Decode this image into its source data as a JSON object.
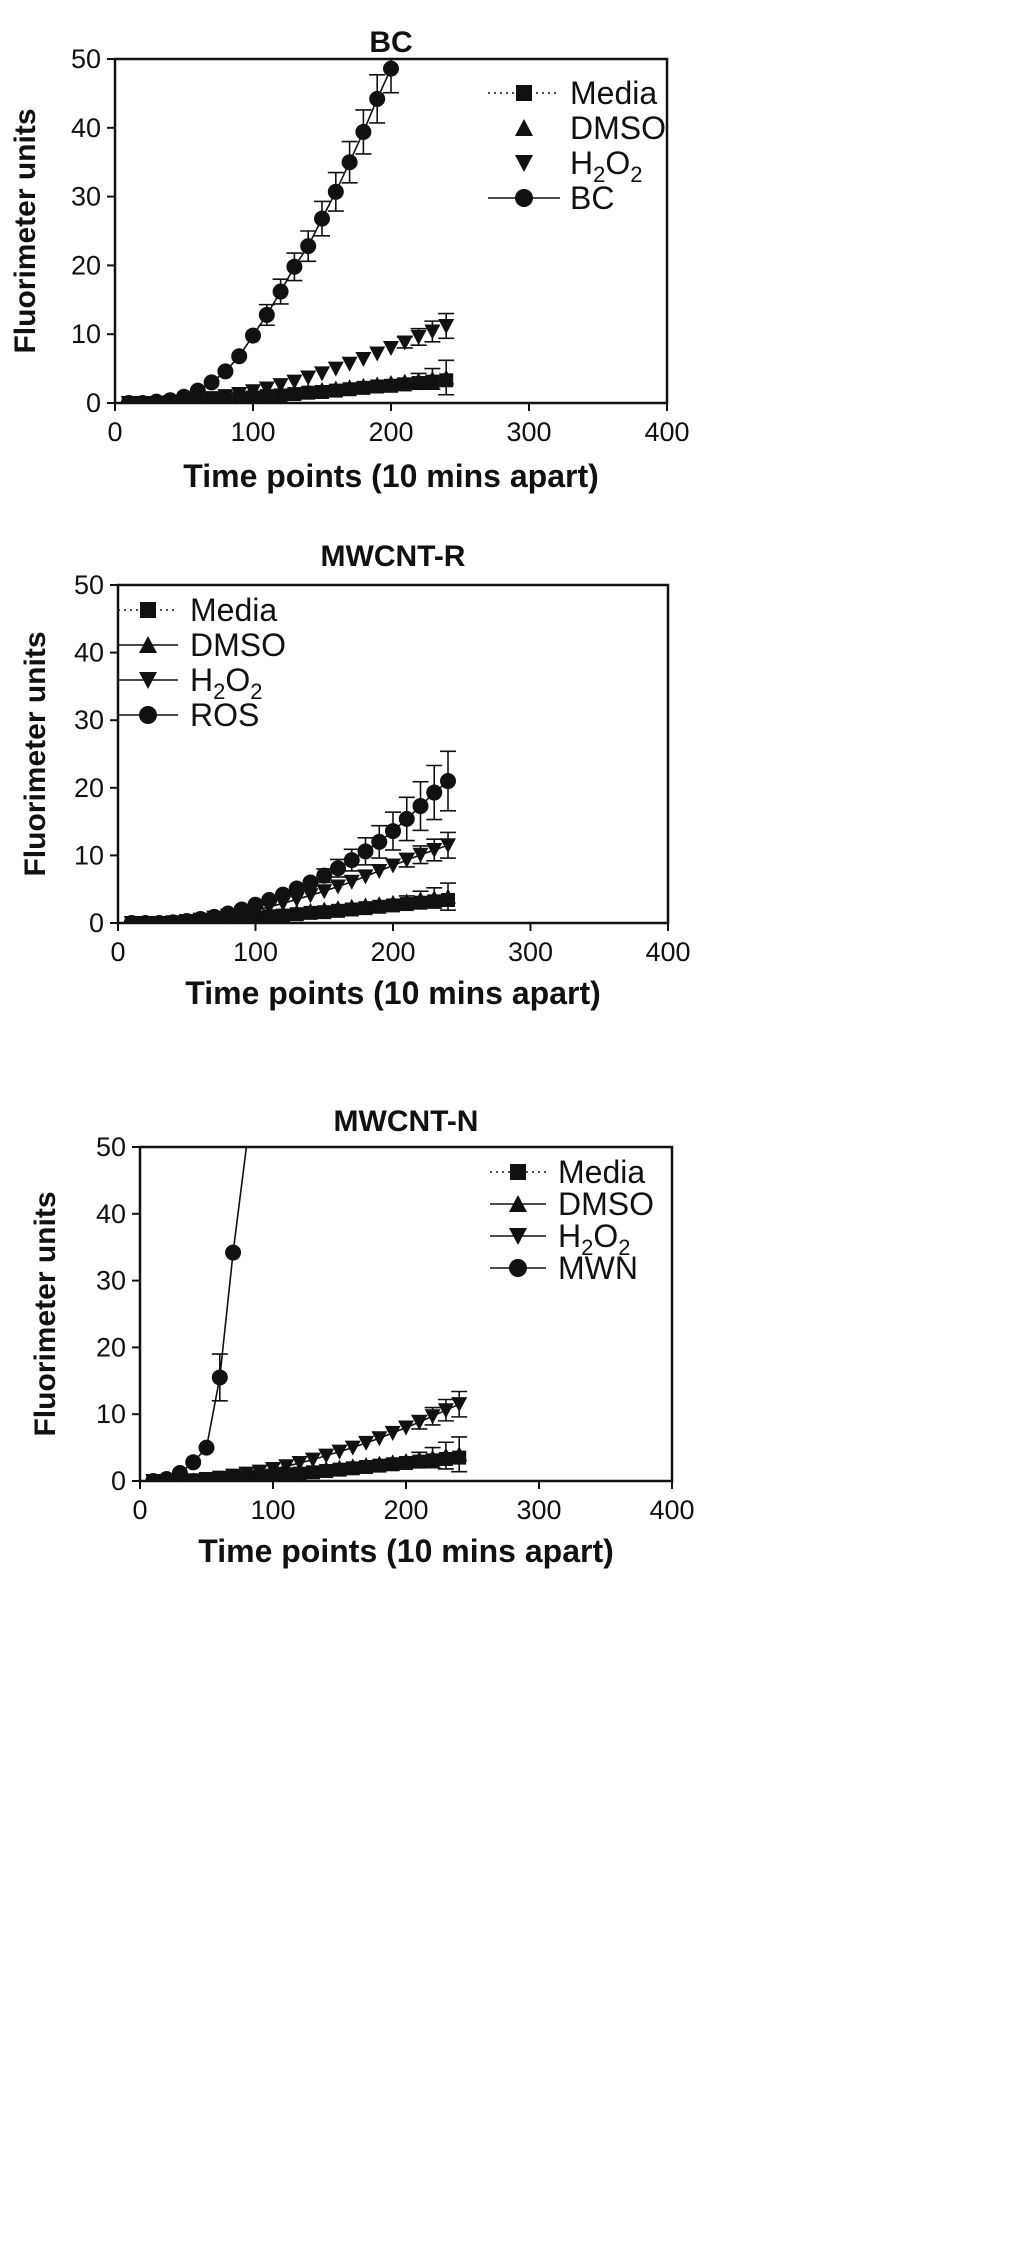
{
  "chart_data": [
    {
      "type": "scatter",
      "title": "BC",
      "xlabel": "Time points (10 mins apart)",
      "ylabel": "Fluorimeter units",
      "xlim": [
        0,
        400
      ],
      "ylim": [
        0,
        50
      ],
      "xticks": [
        0,
        100,
        200,
        300,
        400
      ],
      "yticks": [
        0,
        10,
        20,
        30,
        40,
        50
      ],
      "legend_position": "top-right",
      "legend": [
        "Media",
        "DMSO",
        "H2O2",
        "BC"
      ],
      "series": [
        {
          "name": "Media",
          "marker": "square",
          "line": "dotted",
          "x": [
            10,
            20,
            30,
            40,
            50,
            60,
            70,
            80,
            90,
            100,
            110,
            120,
            130,
            140,
            150,
            160,
            170,
            180,
            190,
            200,
            210,
            220,
            230,
            240
          ],
          "y": [
            0,
            0,
            0,
            0.1,
            0.2,
            0.3,
            0.4,
            0.5,
            0.7,
            0.8,
            1.0,
            1.1,
            1.3,
            1.5,
            1.6,
            1.8,
            2.0,
            2.2,
            2.4,
            2.5,
            2.7,
            2.9,
            3.1,
            3.3
          ],
          "err": [
            0,
            0,
            0,
            0,
            0,
            0,
            0,
            0,
            0,
            0,
            0,
            0,
            0,
            0,
            0,
            0,
            0,
            0,
            0,
            0,
            0,
            0,
            0,
            0
          ]
        },
        {
          "name": "DMSO",
          "marker": "triangle-up",
          "line": "none",
          "x": [
            10,
            20,
            30,
            40,
            50,
            60,
            70,
            80,
            90,
            100,
            110,
            120,
            130,
            140,
            150,
            160,
            170,
            180,
            190,
            200,
            210,
            220,
            230,
            240
          ],
          "y": [
            0,
            0,
            0,
            0.1,
            0.2,
            0.3,
            0.4,
            0.6,
            0.8,
            0.9,
            1.1,
            1.3,
            1.5,
            1.7,
            1.9,
            2.1,
            2.3,
            2.5,
            2.7,
            2.9,
            3.1,
            3.3,
            3.5,
            3.7
          ],
          "err": [
            0,
            0,
            0,
            0,
            0,
            0,
            0,
            0,
            0,
            0,
            0,
            0,
            0,
            0,
            0,
            0,
            0,
            0,
            0,
            0,
            0.5,
            1.0,
            1.5,
            2.5
          ]
        },
        {
          "name": "H2O2",
          "marker": "triangle-down",
          "line": "none",
          "x": [
            10,
            20,
            30,
            40,
            50,
            60,
            70,
            80,
            90,
            100,
            110,
            120,
            130,
            140,
            150,
            160,
            170,
            180,
            190,
            200,
            210,
            220,
            230,
            240
          ],
          "y": [
            0,
            0,
            0,
            0.1,
            0.2,
            0.4,
            0.7,
            1.0,
            1.3,
            1.7,
            2.1,
            2.6,
            3.1,
            3.7,
            4.3,
            5.0,
            5.7,
            6.4,
            7.2,
            8.0,
            8.8,
            9.6,
            10.4,
            11.2
          ],
          "err": [
            0,
            0,
            0,
            0,
            0,
            0,
            0,
            0,
            0,
            0,
            0,
            0,
            0,
            0,
            0,
            0,
            0,
            0,
            0,
            0,
            0.8,
            1.2,
            1.5,
            1.8
          ]
        },
        {
          "name": "BC",
          "marker": "circle",
          "line": "solid",
          "x": [
            10,
            20,
            30,
            40,
            50,
            60,
            70,
            80,
            90,
            100,
            110,
            120,
            130,
            140,
            150,
            160,
            170,
            180,
            190,
            200
          ],
          "y": [
            0,
            0,
            0.2,
            0.4,
            0.9,
            1.8,
            3.0,
            4.6,
            6.8,
            9.8,
            12.8,
            16.2,
            19.8,
            22.8,
            26.8,
            30.7,
            35.0,
            39.4,
            44.2,
            48.6
          ],
          "err": [
            0,
            0,
            0,
            0,
            0,
            0,
            0,
            0,
            0,
            0,
            1.5,
            1.8,
            2.0,
            2.2,
            2.5,
            2.8,
            3.0,
            3.2,
            3.5,
            3.5
          ]
        }
      ]
    },
    {
      "type": "scatter",
      "title": "MWCNT-R",
      "xlabel": "Time points (10 mins apart)",
      "ylabel": "Fluorimeter units",
      "xlim": [
        0,
        400
      ],
      "ylim": [
        0,
        50
      ],
      "xticks": [
        0,
        100,
        200,
        300,
        400
      ],
      "yticks": [
        0,
        10,
        20,
        30,
        40,
        50
      ],
      "legend_position": "top-left",
      "legend": [
        "Media",
        "DMSO",
        "H2O2",
        "ROS"
      ],
      "series": [
        {
          "name": "Media",
          "marker": "square",
          "line": "dotted",
          "x": [
            10,
            20,
            30,
            40,
            50,
            60,
            70,
            80,
            90,
            100,
            110,
            120,
            130,
            140,
            150,
            160,
            170,
            180,
            190,
            200,
            210,
            220,
            230,
            240
          ],
          "y": [
            0,
            0,
            0,
            0.1,
            0.2,
            0.3,
            0.4,
            0.5,
            0.7,
            0.8,
            1.0,
            1.1,
            1.3,
            1.5,
            1.6,
            1.8,
            2.0,
            2.2,
            2.4,
            2.6,
            2.8,
            3.0,
            3.2,
            3.4
          ],
          "err": [
            0,
            0,
            0,
            0,
            0,
            0,
            0,
            0,
            0,
            0,
            0,
            0,
            0,
            0,
            0,
            0,
            0,
            0,
            0,
            0,
            0,
            0,
            0,
            0
          ]
        },
        {
          "name": "DMSO",
          "marker": "triangle-up",
          "line": "solid",
          "x": [
            10,
            20,
            30,
            40,
            50,
            60,
            70,
            80,
            90,
            100,
            110,
            120,
            130,
            140,
            150,
            160,
            170,
            180,
            190,
            200,
            210,
            220,
            230,
            240
          ],
          "y": [
            0,
            0,
            0,
            0.1,
            0.2,
            0.3,
            0.5,
            0.6,
            0.8,
            1.0,
            1.2,
            1.4,
            1.6,
            1.8,
            2.0,
            2.2,
            2.4,
            2.6,
            2.8,
            3.0,
            3.2,
            3.5,
            3.7,
            3.9
          ],
          "err": [
            0,
            0,
            0,
            0,
            0,
            0,
            0,
            0,
            0,
            0,
            0,
            0,
            0,
            0,
            0,
            0,
            0,
            0,
            0,
            0,
            0.8,
            1.2,
            1.5,
            2.0
          ]
        },
        {
          "name": "H2O2",
          "marker": "triangle-down",
          "line": "solid",
          "x": [
            10,
            20,
            30,
            40,
            50,
            60,
            70,
            80,
            90,
            100,
            110,
            120,
            130,
            140,
            150,
            160,
            170,
            180,
            190,
            200,
            210,
            220,
            230,
            240
          ],
          "y": [
            0,
            0,
            0,
            0.1,
            0.3,
            0.5,
            0.8,
            1.1,
            1.5,
            1.9,
            2.4,
            2.9,
            3.5,
            4.1,
            4.7,
            5.4,
            6.1,
            6.9,
            7.7,
            8.5,
            9.3,
            10.1,
            10.8,
            11.5
          ],
          "err": [
            0,
            0,
            0,
            0,
            0,
            0,
            0,
            0,
            0,
            0,
            0,
            0,
            0,
            0,
            0,
            0,
            0,
            0,
            0,
            0,
            1.0,
            1.3,
            1.6,
            1.9
          ]
        },
        {
          "name": "ROS",
          "marker": "circle",
          "line": "solid",
          "x": [
            10,
            20,
            30,
            40,
            50,
            60,
            70,
            80,
            90,
            100,
            110,
            120,
            130,
            140,
            150,
            160,
            170,
            180,
            190,
            200,
            210,
            220,
            230,
            240
          ],
          "y": [
            0,
            0,
            0,
            0.1,
            0.3,
            0.6,
            0.9,
            1.4,
            2.0,
            2.7,
            3.4,
            4.2,
            5.1,
            6.0,
            7.0,
            8.1,
            9.3,
            10.6,
            12.0,
            13.6,
            15.4,
            17.3,
            19.3,
            21.0
          ],
          "err": [
            0,
            0,
            0,
            0,
            0,
            0,
            0,
            0,
            0,
            0,
            0,
            0,
            0,
            0,
            1.0,
            1.3,
            1.6,
            2.0,
            2.4,
            2.8,
            3.2,
            3.6,
            4.0,
            4.4
          ]
        }
      ]
    },
    {
      "type": "scatter",
      "title": "MWCNT-N",
      "xlabel": "Time points (10 mins apart)",
      "ylabel": "Fluorimeter units",
      "xlim": [
        0,
        400
      ],
      "ylim": [
        0,
        50
      ],
      "xticks": [
        0,
        100,
        200,
        300,
        400
      ],
      "yticks": [
        0,
        10,
        20,
        30,
        40,
        50
      ],
      "legend_position": "top-right",
      "legend": [
        "Media",
        "DMSO",
        "H2O2",
        "MWN"
      ],
      "series": [
        {
          "name": "Media",
          "marker": "square",
          "line": "dotted",
          "x": [
            10,
            20,
            30,
            40,
            50,
            60,
            70,
            80,
            90,
            100,
            110,
            120,
            130,
            140,
            150,
            160,
            170,
            180,
            190,
            200,
            210,
            220,
            230,
            240
          ],
          "y": [
            0,
            0,
            0,
            0.1,
            0.2,
            0.3,
            0.4,
            0.5,
            0.7,
            0.8,
            1.0,
            1.1,
            1.3,
            1.5,
            1.7,
            1.9,
            2.1,
            2.3,
            2.5,
            2.7,
            2.9,
            3.1,
            3.3,
            3.5
          ],
          "err": [
            0,
            0,
            0,
            0,
            0,
            0,
            0,
            0,
            0,
            0,
            0,
            0,
            0,
            0,
            0,
            0,
            0,
            0,
            0,
            0,
            0,
            0,
            0,
            0
          ]
        },
        {
          "name": "DMSO",
          "marker": "triangle-up",
          "line": "solid",
          "x": [
            10,
            20,
            30,
            40,
            50,
            60,
            70,
            80,
            90,
            100,
            110,
            120,
            130,
            140,
            150,
            160,
            170,
            180,
            190,
            200,
            210,
            220,
            230,
            240
          ],
          "y": [
            0,
            0,
            0,
            0.1,
            0.2,
            0.3,
            0.5,
            0.6,
            0.8,
            1.0,
            1.2,
            1.4,
            1.6,
            1.8,
            2.0,
            2.2,
            2.4,
            2.6,
            2.8,
            3.0,
            3.3,
            3.5,
            3.8,
            4.0
          ],
          "err": [
            0,
            0,
            0,
            0,
            0,
            0,
            0,
            0,
            0,
            0,
            0,
            0,
            0,
            0,
            0,
            0,
            0,
            0,
            0,
            0,
            1.0,
            1.5,
            2.0,
            2.6
          ]
        },
        {
          "name": "H2O2",
          "marker": "triangle-down",
          "line": "solid",
          "x": [
            10,
            20,
            30,
            40,
            50,
            60,
            70,
            80,
            90,
            100,
            110,
            120,
            130,
            140,
            150,
            160,
            170,
            180,
            190,
            200,
            210,
            220,
            230,
            240
          ],
          "y": [
            0,
            0,
            0,
            0.1,
            0.3,
            0.5,
            0.8,
            1.1,
            1.4,
            1.8,
            2.2,
            2.7,
            3.2,
            3.8,
            4.4,
            5.0,
            5.7,
            6.4,
            7.2,
            8.0,
            8.8,
            9.7,
            10.6,
            11.5
          ],
          "err": [
            0,
            0,
            0,
            0,
            0,
            0,
            0,
            0,
            0,
            0,
            0,
            0,
            0,
            0,
            0,
            0,
            0,
            0,
            0,
            0,
            1.0,
            1.3,
            1.6,
            1.9
          ]
        },
        {
          "name": "MWN",
          "marker": "circle",
          "line": "solid",
          "x": [
            10,
            20,
            30,
            40,
            50,
            60,
            70
          ],
          "y": [
            0,
            0.3,
            1.2,
            2.8,
            5.0,
            15.5,
            34.2
          ],
          "err": [
            0,
            0,
            0,
            0,
            0,
            3.5,
            0
          ],
          "curve_continues_to": [
            80,
            50
          ]
        }
      ]
    }
  ]
}
